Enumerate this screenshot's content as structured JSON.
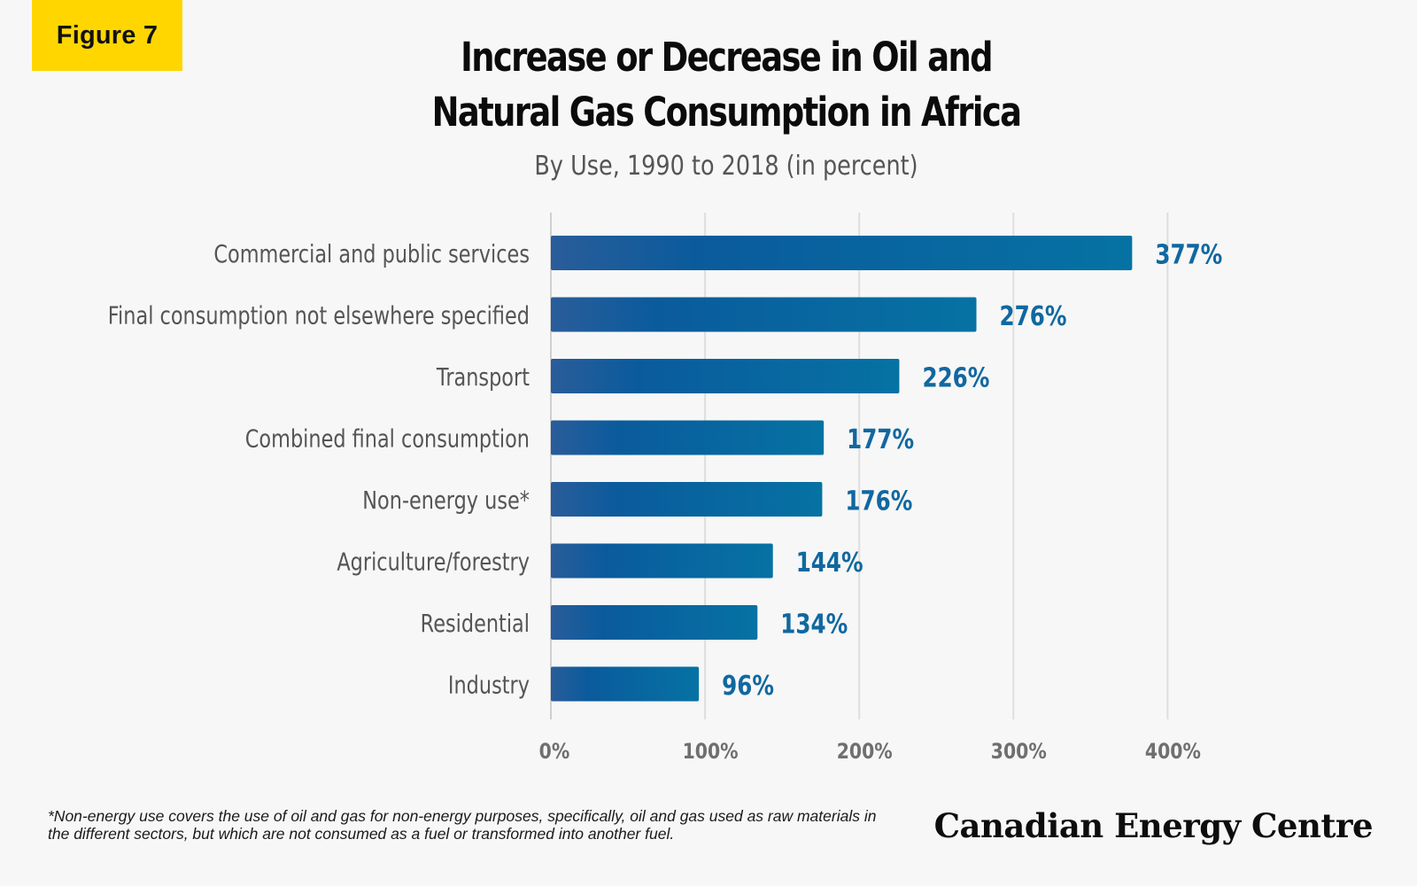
{
  "badge": {
    "label": "Figure 7",
    "color": "#ffd600"
  },
  "chart_data": {
    "type": "bar",
    "orientation": "horizontal",
    "title": "Increase or Decrease in Oil and Natural Gas Consumption in Africa",
    "title_lines": [
      "Increase or Decrease in Oil and",
      "Natural Gas Consumption in Africa"
    ],
    "subtitle": "By Use, 1990 to 2018 (in percent)",
    "categories": [
      "Commercial and public services",
      "Final consumption not elsewhere specified",
      "Transport",
      "Combined final consumption",
      "Non-energy use*",
      "Agriculture/forestry",
      "Residential",
      "Industry"
    ],
    "values": [
      377,
      276,
      226,
      177,
      176,
      144,
      134,
      96
    ],
    "value_labels": [
      "377%",
      "276%",
      "226%",
      "177%",
      "176%",
      "144%",
      "134%",
      "96%"
    ],
    "xlim": [
      0,
      400
    ],
    "xticks": [
      0,
      100,
      200,
      300,
      400
    ],
    "xtick_labels": [
      "0%",
      "100%",
      "200%",
      "300%",
      "400%"
    ],
    "grid": true,
    "bar_color_start": "#2a5c9a",
    "bar_color_end": "#0672a3",
    "value_label_color": "#1068a0"
  },
  "footnote": "*Non-energy use covers the use of oil and gas for non-energy purposes, specifically, oil and gas used as raw materials in the different sectors, but which are not consumed as a fuel or transformed into another fuel.",
  "brand": "Canadian Energy Centre"
}
